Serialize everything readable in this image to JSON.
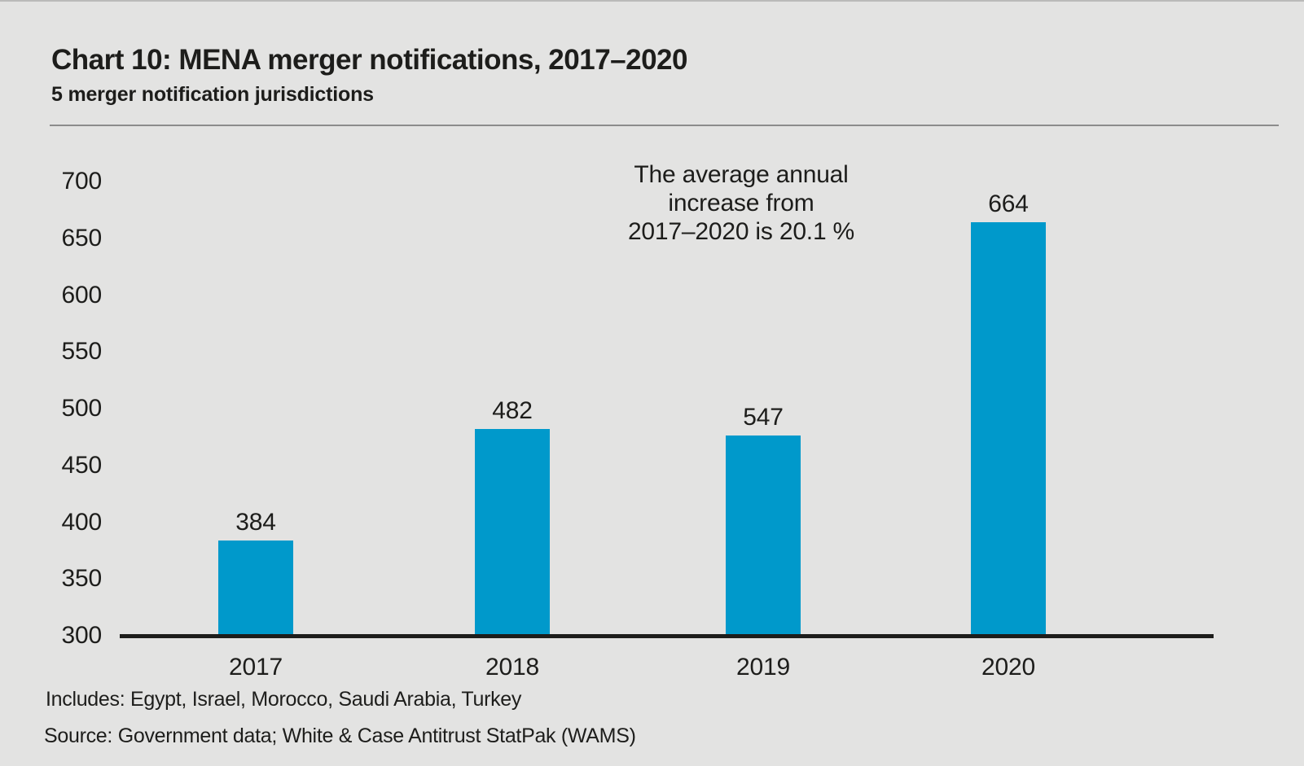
{
  "header": {
    "title": "Chart 10: MENA merger notifications, 2017–2020",
    "subtitle": "5 merger notification jurisdictions"
  },
  "annotation": {
    "lines": [
      "The average annual",
      "increase from",
      "2017–2020 is 20.1 %"
    ]
  },
  "chart_data": {
    "type": "bar",
    "title": "Chart 10: MENA merger notifications, 2017–2020",
    "subtitle": "5 merger notification jurisdictions",
    "categories": [
      "2017",
      "2018",
      "2019",
      "2020"
    ],
    "values": [
      384,
      482,
      547,
      664
    ],
    "bar_values_as_drawn": [
      384,
      482,
      476,
      664
    ],
    "yticks": [
      700,
      650,
      600,
      550,
      500,
      450,
      400,
      350,
      300
    ],
    "ylim": [
      300,
      700
    ],
    "grid": false,
    "legend": false,
    "annotation": "The average annual increase from 2017–2020 is 20.1 %",
    "bar_color": "#0099cb",
    "background_color": "#e3e3e2",
    "text_color": "#1d1d1b"
  },
  "footer": {
    "includes": "Includes: Egypt, Israel, Morocco, Saudi Arabia, Turkey",
    "source": "Source: Government data; White & Case Antitrust StatPak (WAMS)"
  }
}
